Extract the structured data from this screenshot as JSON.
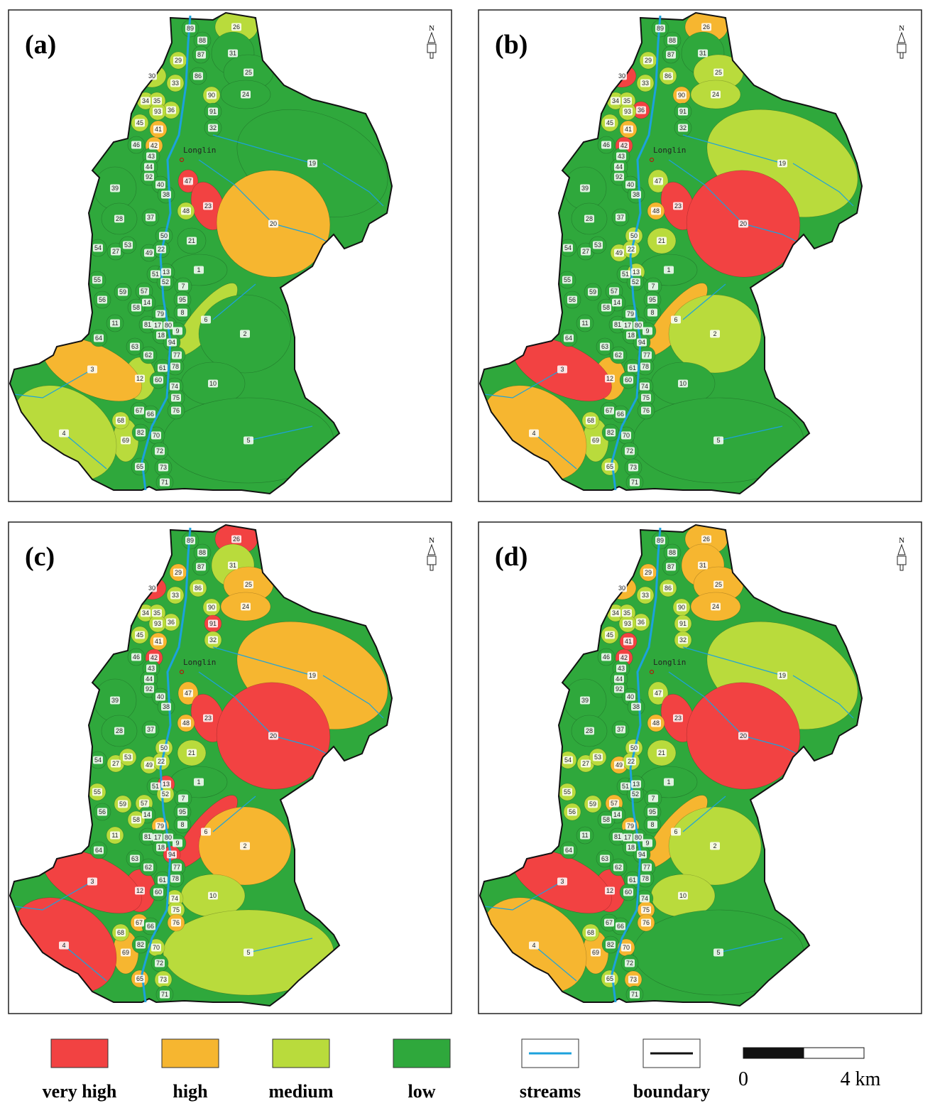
{
  "panels": [
    {
      "label": "(a)",
      "risk": [
        3,
        3,
        3,
        2,
        3,
        2,
        2,
        2,
        3,
        3,
        2,
        3,
        2,
        2,
        2,
        2,
        3,
        3,
        2,
        1,
        3,
        1,
        3,
        3,
        3,
        3,
        3,
        0,
        3,
        3,
        0,
        2,
        3,
        3,
        1,
        3,
        3,
        3,
        3,
        3,
        3,
        3,
        3,
        3,
        3,
        3,
        3,
        3,
        3,
        3,
        3,
        3,
        3,
        3,
        3,
        3,
        2,
        3,
        3,
        3,
        3,
        3,
        3,
        3,
        3,
        3,
        3,
        3,
        3,
        3,
        3,
        2,
        3,
        3,
        3,
        1,
        3,
        3,
        3,
        3,
        2,
        3,
        3,
        2,
        3,
        2,
        3,
        3,
        3,
        3
      ]
    },
    {
      "label": "(b)",
      "risk": [
        3,
        3,
        3,
        1,
        3,
        2,
        0,
        2,
        2,
        2,
        1,
        2,
        2,
        2,
        0,
        2,
        3,
        3,
        2,
        1,
        3,
        0,
        3,
        3,
        3,
        2,
        3,
        2,
        3,
        3,
        0,
        1,
        3,
        3,
        0,
        2,
        2,
        3,
        3,
        3,
        2,
        2,
        3,
        2,
        3,
        3,
        3,
        3,
        3,
        3,
        3,
        3,
        3,
        3,
        3,
        3,
        1,
        3,
        3,
        3,
        3,
        3,
        2,
        3,
        3,
        3,
        3,
        3,
        3,
        3,
        3,
        1,
        3,
        3,
        3,
        0,
        3,
        3,
        3,
        3,
        2,
        3,
        3,
        2,
        3,
        1,
        3,
        2,
        3,
        3
      ]
    },
    {
      "label": "(c)",
      "risk": [
        3,
        3,
        3,
        0,
        2,
        1,
        0,
        2,
        2,
        1,
        2,
        1,
        2,
        2,
        2,
        2,
        0,
        2,
        2,
        1,
        3,
        0,
        3,
        3,
        3,
        1,
        3,
        1,
        3,
        3,
        0,
        1,
        3,
        3,
        0,
        2,
        2,
        3,
        2,
        2,
        2,
        2,
        3,
        0,
        3,
        2,
        2,
        3,
        2,
        2,
        3,
        3,
        3,
        2,
        1,
        3,
        0,
        2,
        3,
        3,
        3,
        3,
        1,
        3,
        0,
        3,
        3,
        3,
        3,
        3,
        3,
        0,
        3,
        2,
        2,
        0,
        2,
        1,
        3,
        1,
        2,
        3,
        2,
        1,
        3,
        0,
        2,
        1,
        2,
        3
      ]
    },
    {
      "label": "(d)",
      "risk": [
        3,
        3,
        3,
        1,
        1,
        1,
        1,
        2,
        2,
        1,
        2,
        1,
        2,
        2,
        2,
        2,
        2,
        2,
        2,
        0,
        3,
        0,
        3,
        3,
        3,
        2,
        3,
        2,
        3,
        3,
        0,
        1,
        3,
        3,
        0,
        2,
        2,
        2,
        2,
        2,
        1,
        2,
        3,
        3,
        3,
        2,
        3,
        3,
        2,
        1,
        3,
        2,
        3,
        3,
        1,
        3,
        1,
        3,
        3,
        3,
        3,
        3,
        2,
        3,
        3,
        3,
        3,
        3,
        3,
        3,
        3,
        0,
        3,
        3,
        2,
        0,
        1,
        3,
        3,
        1,
        2,
        3,
        1,
        1,
        3,
        1,
        3,
        2,
        1,
        3
      ]
    }
  ],
  "subbasins": [
    89,
    88,
    87,
    26,
    31,
    29,
    30,
    33,
    86,
    25,
    90,
    24,
    34,
    35,
    36,
    93,
    91,
    32,
    45,
    41,
    46,
    42,
    43,
    44,
    92,
    19,
    40,
    47,
    39,
    38,
    23,
    48,
    28,
    37,
    20,
    50,
    21,
    54,
    27,
    53,
    49,
    22,
    51,
    13,
    1,
    55,
    52,
    7,
    59,
    57,
    95,
    56,
    14,
    58,
    79,
    8,
    6,
    11,
    81,
    17,
    80,
    9,
    2,
    18,
    94,
    64,
    63,
    62,
    77,
    61,
    78,
    12,
    60,
    74,
    10,
    3,
    75,
    67,
    66,
    76,
    68,
    82,
    70,
    69,
    72,
    4,
    5,
    65,
    73,
    71
  ],
  "town": "Longlin",
  "north": "N",
  "legend": {
    "classes": [
      {
        "label": "very high",
        "color": "#f24242"
      },
      {
        "label": "high",
        "color": "#f6b630"
      },
      {
        "label": "medium",
        "color": "#b9db3c"
      },
      {
        "label": "low",
        "color": "#2fa83c"
      }
    ],
    "streams": {
      "label": "streams",
      "color": "#1ca2dc"
    },
    "boundary": {
      "label": "boundary",
      "color": "#111111"
    }
  },
  "scale": {
    "start": "0",
    "end": "4 km"
  }
}
